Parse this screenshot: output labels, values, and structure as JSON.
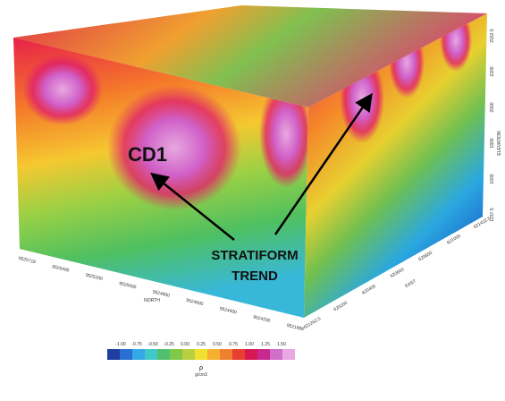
{
  "labels": {
    "deposit": "CD1",
    "trend": [
      "STRATIFORM",
      "TREND"
    ]
  },
  "axes": {
    "north": {
      "title": "NORTH",
      "ticks": [
        "9525718",
        "9525400",
        "9525200",
        "9525000",
        "9524800",
        "9524600",
        "9524400",
        "9524200",
        "9521888"
      ]
    },
    "east": {
      "title": "EAST",
      "ticks": [
        "621262.5",
        "620200",
        "620400",
        "620600",
        "620800",
        "621000",
        "621422.5"
      ]
    },
    "elevation": {
      "title": "ELEVATION",
      "ticks": [
        "2162.5",
        "2200",
        "2000",
        "1800",
        "1600",
        "1237.5"
      ]
    }
  },
  "legend": {
    "symbol": "ρ",
    "unit": "g/cm3",
    "ticks": [
      "-1.00",
      "-0.75",
      "-0.50",
      "-0.25",
      "0.00",
      "0.25",
      "0.50",
      "0.75",
      "1.00",
      "1.25",
      "1.50"
    ]
  }
}
